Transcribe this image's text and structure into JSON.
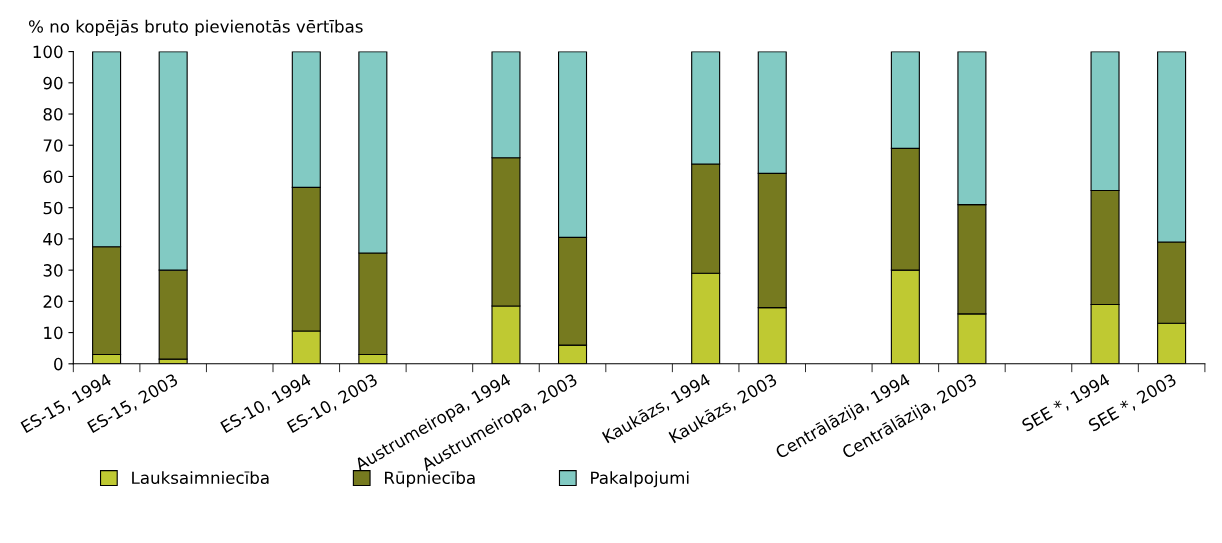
{
  "chart_data": {
    "type": "bar",
    "stacked": true,
    "ylabel": "% no kopējās bruto pievienotās vērtības",
    "categories": [
      "ES-15, 1994",
      "ES-15, 2003",
      null,
      "ES-10, 1994",
      "ES-10, 2003",
      null,
      "Austrumeiropa, 1994",
      "Austrumeiropa, 2003",
      null,
      "Kaukāzs, 1994",
      "Kaukāzs, 2003",
      null,
      "Centrālāzija, 1994",
      "Centrālāzija, 2003",
      null,
      "SEE *, 1994",
      "SEE *, 2003"
    ],
    "series": [
      {
        "name": "Lauksaimniecība",
        "color": "#bfc932",
        "values": [
          3,
          1.5,
          null,
          10.5,
          3,
          null,
          18.5,
          6,
          null,
          29,
          18,
          null,
          30,
          16,
          null,
          19,
          13
        ]
      },
      {
        "name": "Rūpniecība",
        "color": "#767a1f",
        "values": [
          34.5,
          28.5,
          null,
          46,
          32.5,
          null,
          47.5,
          34.5,
          null,
          35,
          43,
          null,
          39,
          35,
          null,
          36.5,
          26
        ]
      },
      {
        "name": "Pakalpojumi",
        "color": "#82cac3",
        "values": [
          62.5,
          70,
          null,
          43.5,
          64.5,
          null,
          34,
          59.5,
          null,
          36,
          39,
          null,
          31,
          49,
          null,
          44.5,
          61
        ]
      }
    ],
    "ylim": [
      0,
      100
    ],
    "yticks": [
      0,
      10,
      20,
      30,
      40,
      50,
      60,
      70,
      80,
      90,
      100
    ],
    "grid": false,
    "legend": "bottom"
  }
}
